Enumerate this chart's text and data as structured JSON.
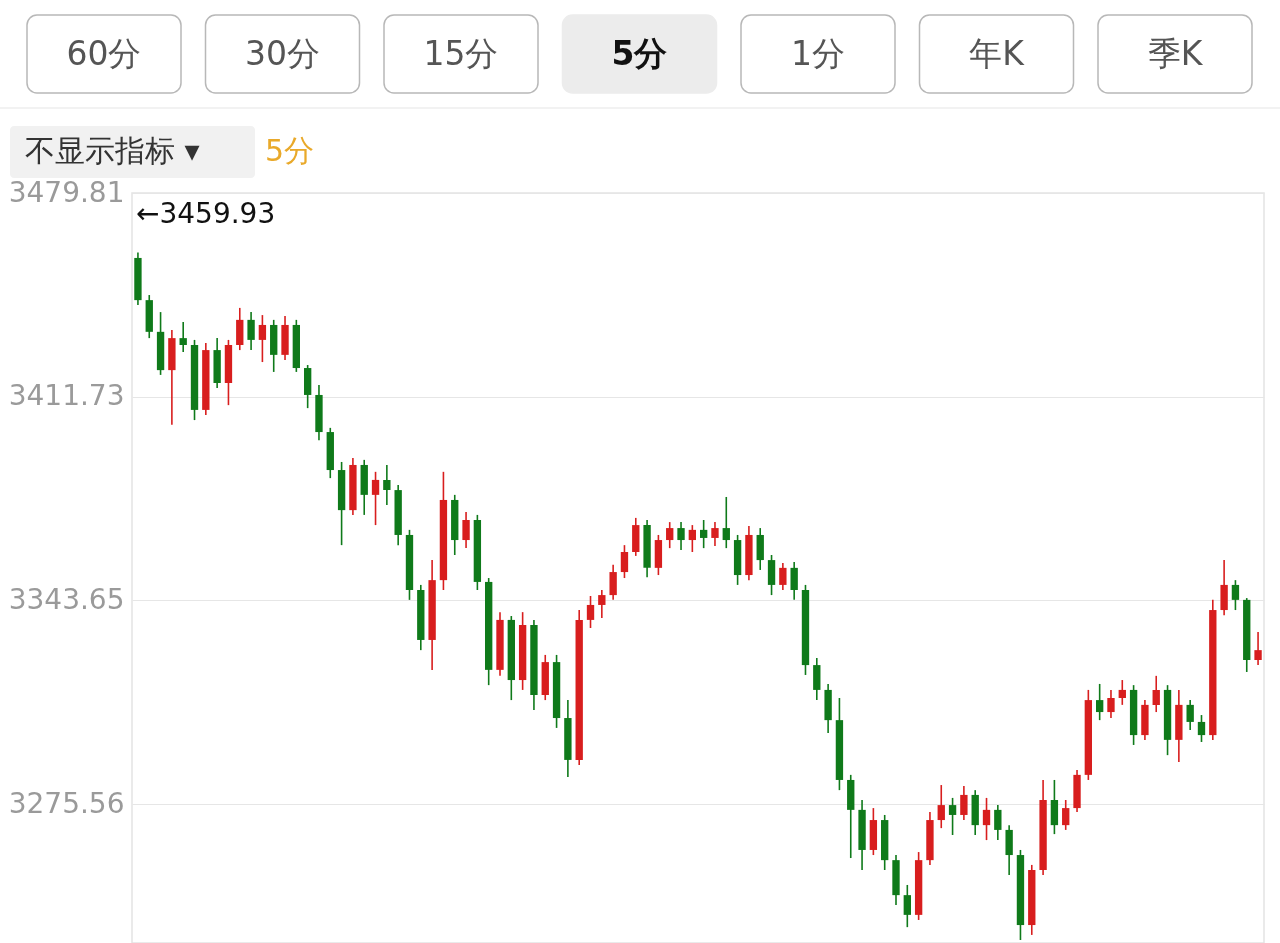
{
  "chart_data": {
    "type": "candlestick",
    "categories": [
      null,
      null,
      null,
      null,
      null,
      null,
      null,
      null,
      null,
      null,
      null,
      null,
      null,
      null,
      null,
      null,
      null,
      null,
      null,
      null,
      null,
      null,
      null,
      null,
      null,
      null,
      null,
      null,
      null,
      null,
      null,
      null,
      null,
      null,
      null,
      null,
      null,
      null,
      null,
      null,
      null,
      null,
      null,
      null,
      null,
      null,
      null,
      null,
      null,
      null,
      null,
      null,
      null,
      null,
      null,
      null,
      null,
      null,
      null,
      null,
      null,
      null,
      null,
      null,
      null,
      null,
      null,
      null,
      null,
      null,
      null,
      null,
      null,
      null,
      null,
      null,
      null,
      null,
      null,
      null,
      null,
      null,
      null,
      null,
      null,
      null,
      null,
      null,
      null,
      null,
      null,
      null,
      null,
      null,
      null,
      null,
      null,
      null,
      null,
      null
    ],
    "ohlc": [
      [
        3458.1,
        3459.93,
        3442.4,
        3444.0
      ],
      [
        3444.0,
        3445.7,
        3431.3,
        3433.4
      ],
      [
        3433.4,
        3440.0,
        3419.0,
        3420.6
      ],
      [
        3420.6,
        3434.0,
        3402.3,
        3431.3
      ],
      [
        3431.3,
        3436.7,
        3426.7,
        3429.0
      ],
      [
        3429.0,
        3430.7,
        3403.9,
        3407.3
      ],
      [
        3407.3,
        3429.7,
        3405.6,
        3427.3
      ],
      [
        3427.3,
        3431.3,
        3414.6,
        3416.3
      ],
      [
        3416.3,
        3430.7,
        3408.9,
        3429.0
      ],
      [
        3429.0,
        3441.4,
        3427.3,
        3437.4
      ],
      [
        3437.4,
        3440.0,
        3427.3,
        3430.7
      ],
      [
        3430.7,
        3439.0,
        3423.3,
        3435.7
      ],
      [
        3435.7,
        3437.4,
        3420.0,
        3425.7
      ],
      [
        3425.7,
        3438.7,
        3424.0,
        3435.7
      ],
      [
        3435.7,
        3437.4,
        3420.0,
        3421.3
      ],
      [
        3421.3,
        3422.3,
        3407.9,
        3412.3
      ],
      [
        3412.3,
        3415.6,
        3397.2,
        3399.9
      ],
      [
        3399.9,
        3401.3,
        3384.5,
        3387.2
      ],
      [
        3387.2,
        3389.9,
        3362.1,
        3373.8
      ],
      [
        3373.8,
        3391.2,
        3372.2,
        3388.9
      ],
      [
        3388.9,
        3390.6,
        3372.2,
        3378.9
      ],
      [
        3378.9,
        3386.6,
        3368.8,
        3383.9
      ],
      [
        3383.9,
        3388.9,
        3375.5,
        3380.5
      ],
      [
        3380.5,
        3382.2,
        3362.1,
        3365.5
      ],
      [
        3365.5,
        3367.2,
        3343.8,
        3347.1
      ],
      [
        3347.1,
        3348.8,
        3327.0,
        3330.4
      ],
      [
        3330.4,
        3357.1,
        3320.4,
        3350.4
      ],
      [
        3350.4,
        3386.6,
        3347.1,
        3377.2
      ],
      [
        3377.2,
        3378.9,
        3358.8,
        3363.8
      ],
      [
        3363.8,
        3373.2,
        3361.1,
        3370.5
      ],
      [
        3370.5,
        3372.2,
        3347.1,
        3349.8
      ],
      [
        3349.8,
        3351.1,
        3315.3,
        3320.4
      ],
      [
        3320.4,
        3339.7,
        3318.4,
        3337.1
      ],
      [
        3337.1,
        3338.4,
        3310.3,
        3317.0
      ],
      [
        3317.0,
        3339.7,
        3313.7,
        3335.4
      ],
      [
        3335.4,
        3337.1,
        3307.0,
        3312.0
      ],
      [
        3312.0,
        3325.4,
        3310.3,
        3323.0
      ],
      [
        3323.0,
        3325.4,
        3301.0,
        3304.3
      ],
      [
        3304.3,
        3310.3,
        3284.6,
        3290.3
      ],
      [
        3290.3,
        3340.4,
        3288.6,
        3337.1
      ],
      [
        3337.1,
        3345.1,
        3334.4,
        3342.1
      ],
      [
        3342.1,
        3347.1,
        3337.7,
        3345.4
      ],
      [
        3345.4,
        3355.5,
        3343.8,
        3353.1
      ],
      [
        3353.1,
        3362.1,
        3351.1,
        3359.8
      ],
      [
        3359.8,
        3371.2,
        3358.5,
        3368.8
      ],
      [
        3368.8,
        3370.5,
        3351.4,
        3354.5
      ],
      [
        3354.5,
        3365.5,
        3352.1,
        3363.8
      ],
      [
        3363.8,
        3369.8,
        3361.1,
        3367.8
      ],
      [
        3367.8,
        3369.8,
        3360.5,
        3363.8
      ],
      [
        3363.8,
        3368.8,
        3359.8,
        3367.2
      ],
      [
        3367.2,
        3370.5,
        3361.1,
        3364.5
      ],
      [
        3364.5,
        3369.8,
        3361.8,
        3367.8
      ],
      [
        3367.8,
        3378.2,
        3361.1,
        3363.8
      ],
      [
        3363.8,
        3365.5,
        3348.8,
        3352.1
      ],
      [
        3352.1,
        3368.5,
        3350.4,
        3365.5
      ],
      [
        3365.5,
        3367.8,
        3353.8,
        3357.1
      ],
      [
        3357.1,
        3358.8,
        3345.4,
        3348.8
      ],
      [
        3348.8,
        3356.1,
        3347.1,
        3354.5
      ],
      [
        3354.5,
        3356.5,
        3343.8,
        3347.1
      ],
      [
        3347.1,
        3348.8,
        3318.7,
        3322.0
      ],
      [
        3322.0,
        3324.4,
        3310.3,
        3313.7
      ],
      [
        3313.7,
        3315.7,
        3299.3,
        3303.6
      ],
      [
        3303.6,
        3311.0,
        3280.2,
        3283.6
      ],
      [
        3283.6,
        3285.3,
        3257.5,
        3273.6
      ],
      [
        3273.6,
        3276.9,
        3253.5,
        3260.2
      ],
      [
        3260.2,
        3274.2,
        3258.5,
        3270.2
      ],
      [
        3270.2,
        3271.9,
        3253.5,
        3256.8
      ],
      [
        3256.8,
        3258.5,
        3241.8,
        3245.1
      ],
      [
        3245.1,
        3248.5,
        3234.4,
        3238.5
      ],
      [
        3238.5,
        3259.5,
        3236.8,
        3256.8
      ],
      [
        3256.8,
        3272.9,
        3255.2,
        3270.2
      ],
      [
        3270.2,
        3281.9,
        3267.5,
        3275.2
      ],
      [
        3275.2,
        3277.6,
        3265.2,
        3271.9
      ],
      [
        3271.9,
        3281.6,
        3270.2,
        3278.6
      ],
      [
        3278.6,
        3280.2,
        3265.2,
        3268.5
      ],
      [
        3268.5,
        3277.6,
        3263.5,
        3273.6
      ],
      [
        3273.6,
        3275.2,
        3263.5,
        3266.9
      ],
      [
        3266.9,
        3268.5,
        3251.8,
        3258.5
      ],
      [
        3258.5,
        3260.2,
        3230.1,
        3235.1
      ],
      [
        3235.1,
        3255.2,
        3231.8,
        3253.5
      ],
      [
        3253.5,
        3283.6,
        3251.8,
        3276.9
      ],
      [
        3276.9,
        3283.6,
        3265.5,
        3268.5
      ],
      [
        3268.5,
        3276.9,
        3266.9,
        3274.2
      ],
      [
        3274.2,
        3286.9,
        3272.9,
        3285.3
      ],
      [
        3285.3,
        3313.7,
        3283.6,
        3310.3
      ],
      [
        3310.3,
        3315.7,
        3303.6,
        3306.3
      ],
      [
        3306.3,
        3313.7,
        3304.3,
        3311.0
      ],
      [
        3311.0,
        3317.0,
        3308.7,
        3313.7
      ],
      [
        3313.7,
        3315.3,
        3295.3,
        3298.6
      ],
      [
        3298.6,
        3310.3,
        3297.0,
        3308.7
      ],
      [
        3308.7,
        3318.4,
        3306.3,
        3313.7
      ],
      [
        3313.7,
        3315.3,
        3291.9,
        3297.0
      ],
      [
        3297.0,
        3313.7,
        3289.6,
        3308.7
      ],
      [
        3308.7,
        3310.3,
        3300.3,
        3303.0
      ],
      [
        3303.0,
        3305.3,
        3296.3,
        3298.6
      ],
      [
        3298.6,
        3343.8,
        3297.0,
        3340.4
      ],
      [
        3340.4,
        3357.1,
        3338.7,
        3348.8
      ],
      [
        3348.8,
        3350.4,
        3340.4,
        3343.8
      ],
      [
        3343.8,
        3344.4,
        3319.7,
        3323.7
      ],
      [
        3323.7,
        3333.1,
        3322.0,
        3327.0
      ]
    ],
    "colors": [
      "#0f7a1a",
      "#0f7a1a",
      "#0f7a1a",
      "#d81e1e",
      "#0f7a1a",
      "#0f7a1a",
      "#d81e1e",
      "#0f7a1a",
      "#d81e1e",
      "#d81e1e",
      "#0f7a1a",
      "#d81e1e",
      "#0f7a1a",
      "#d81e1e",
      "#0f7a1a",
      "#0f7a1a",
      "#0f7a1a",
      "#0f7a1a",
      "#0f7a1a",
      "#d81e1e",
      "#0f7a1a",
      "#d81e1e",
      "#0f7a1a",
      "#0f7a1a",
      "#0f7a1a",
      "#0f7a1a",
      "#d81e1e",
      "#d81e1e",
      "#0f7a1a",
      "#d81e1e",
      "#0f7a1a",
      "#0f7a1a",
      "#d81e1e",
      "#0f7a1a",
      "#d81e1e",
      "#0f7a1a",
      "#d81e1e",
      "#0f7a1a",
      "#0f7a1a",
      "#d81e1e",
      "#d81e1e",
      "#d81e1e",
      "#d81e1e",
      "#d81e1e",
      "#d81e1e",
      "#0f7a1a",
      "#d81e1e",
      "#d81e1e",
      "#0f7a1a",
      "#d81e1e",
      "#0f7a1a",
      "#d81e1e",
      "#0f7a1a",
      "#0f7a1a",
      "#d81e1e",
      "#0f7a1a",
      "#0f7a1a",
      "#d81e1e",
      "#0f7a1a",
      "#0f7a1a",
      "#0f7a1a",
      "#0f7a1a",
      "#0f7a1a",
      "#0f7a1a",
      "#0f7a1a",
      "#d81e1e",
      "#0f7a1a",
      "#0f7a1a",
      "#0f7a1a",
      "#d81e1e",
      "#d81e1e",
      "#d81e1e",
      "#0f7a1a",
      "#d81e1e",
      "#0f7a1a",
      "#d81e1e",
      "#0f7a1a",
      "#0f7a1a",
      "#0f7a1a",
      "#d81e1e",
      "#d81e1e",
      "#0f7a1a",
      "#d81e1e",
      "#d81e1e",
      "#d81e1e",
      "#0f7a1a",
      "#d81e1e",
      "#d81e1e",
      "#0f7a1a",
      "#d81e1e",
      "#d81e1e",
      "#0f7a1a",
      "#d81e1e",
      "#0f7a1a",
      "#0f7a1a",
      "#d81e1e",
      "#d81e1e",
      "#0f7a1a",
      "#0f7a1a",
      "#d81e1e"
    ],
    "ylim": [
      3229.1,
      3479.81
    ],
    "yticks": [
      3275.56,
      3343.65,
      3411.73,
      3479.81
    ],
    "grid": "y",
    "tick_labels": "y",
    "annotations": [
      "60分",
      "30分",
      "15分",
      "5分",
      "1分",
      "年K",
      "季K",
      "不显示指标 ▾",
      "5分",
      "←3459.93"
    ]
  }
}
